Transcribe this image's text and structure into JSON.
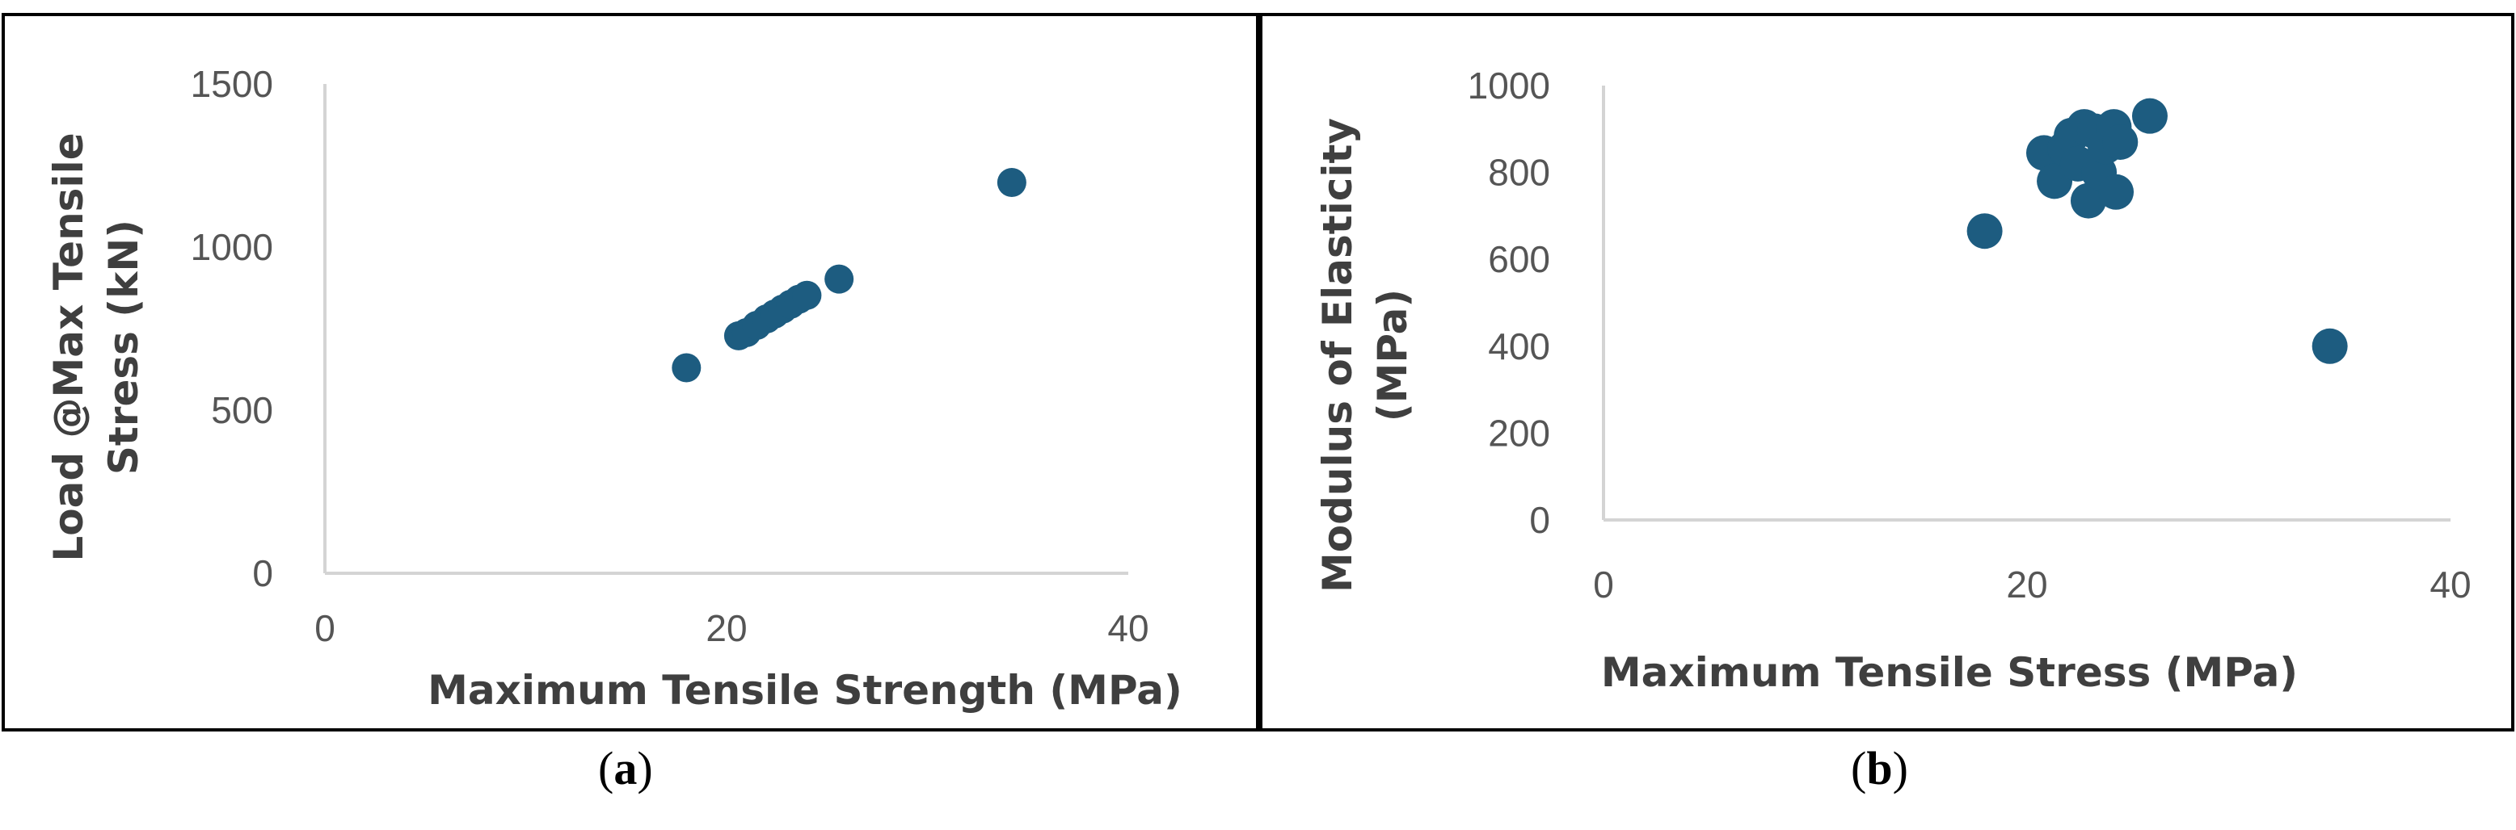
{
  "captions": {
    "a": "a",
    "b": "b"
  },
  "colors": {
    "marker": "#1d5c80",
    "axis": "#d4d4d4",
    "tick_text": "#555555",
    "title_text": "#3f3f3f"
  },
  "chart_data": [
    {
      "type": "scatter",
      "panel": "a",
      "xlabel": "Maximum Tensile Strength (MPa)",
      "ylabel_lines": [
        "Load @Max Tensile",
        "Stress (kN)"
      ],
      "xlim": [
        0,
        40
      ],
      "ylim": [
        0,
        1500
      ],
      "xticks": [
        0,
        20,
        40
      ],
      "yticks": [
        0,
        500,
        1000,
        1500
      ],
      "grid": false,
      "points": [
        {
          "x": 18.0,
          "y": 630
        },
        {
          "x": 20.6,
          "y": 728
        },
        {
          "x": 21.0,
          "y": 738
        },
        {
          "x": 21.5,
          "y": 760
        },
        {
          "x": 22.0,
          "y": 780
        },
        {
          "x": 22.4,
          "y": 795
        },
        {
          "x": 22.8,
          "y": 810
        },
        {
          "x": 23.2,
          "y": 825
        },
        {
          "x": 23.6,
          "y": 840
        },
        {
          "x": 24.0,
          "y": 852
        },
        {
          "x": 25.6,
          "y": 902
        },
        {
          "x": 34.2,
          "y": 1198
        }
      ]
    },
    {
      "type": "scatter",
      "panel": "b",
      "xlabel": "Maximum Tensile Stress (MPa)",
      "ylabel_lines": [
        "Modulus of Elasticity",
        "(MPa)"
      ],
      "xlim": [
        0,
        40
      ],
      "ylim": [
        0,
        1000
      ],
      "xticks": [
        0,
        20,
        40
      ],
      "yticks": [
        0,
        200,
        400,
        600,
        800,
        1000
      ],
      "grid": false,
      "points": [
        {
          "x": 18.0,
          "y": 665
        },
        {
          "x": 20.8,
          "y": 845
        },
        {
          "x": 21.3,
          "y": 780
        },
        {
          "x": 21.8,
          "y": 855
        },
        {
          "x": 22.1,
          "y": 885
        },
        {
          "x": 22.4,
          "y": 820
        },
        {
          "x": 22.7,
          "y": 905
        },
        {
          "x": 22.9,
          "y": 735
        },
        {
          "x": 23.2,
          "y": 895
        },
        {
          "x": 23.4,
          "y": 800
        },
        {
          "x": 23.7,
          "y": 860
        },
        {
          "x": 24.1,
          "y": 905
        },
        {
          "x": 24.2,
          "y": 755
        },
        {
          "x": 24.4,
          "y": 870
        },
        {
          "x": 25.8,
          "y": 930
        },
        {
          "x": 34.3,
          "y": 400
        }
      ]
    }
  ]
}
